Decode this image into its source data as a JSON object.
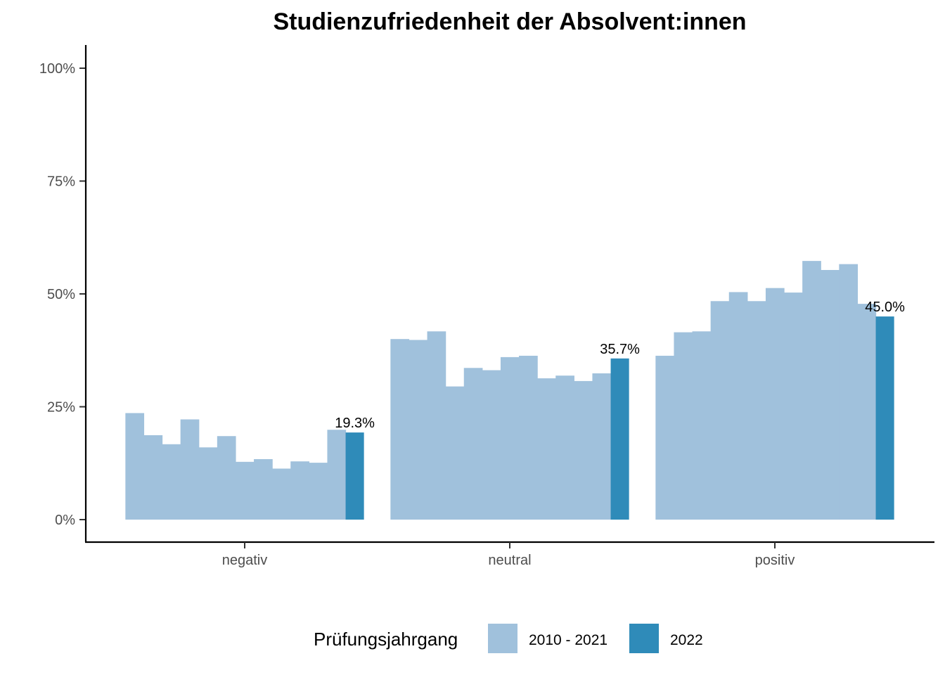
{
  "chart_data": {
    "type": "bar",
    "title": "Studienzufriedenheit der Absolvent:innen",
    "categories": [
      "negativ",
      "neutral",
      "positiv"
    ],
    "y_ticks": [
      "0%",
      "25%",
      "50%",
      "75%",
      "100%"
    ],
    "ylim": [
      0,
      100
    ],
    "grid": false,
    "legend": {
      "title": "Prüfungsjahrgang",
      "position": "bottom",
      "entries": [
        {
          "label": "2010 - 2021",
          "color": "#a0c1dc"
        },
        {
          "label": "2022",
          "color": "#2f8bb9"
        }
      ]
    },
    "series": [
      {
        "name": "2010 - 2021",
        "color": "#a0c1dc",
        "values_by_category": [
          [
            23.6,
            18.7,
            16.7,
            22.2,
            16.0,
            18.5,
            12.8,
            13.4,
            11.3,
            12.9,
            12.6,
            19.9
          ],
          [
            40.0,
            39.8,
            41.7,
            29.5,
            33.6,
            33.1,
            36.0,
            36.3,
            31.3,
            31.9,
            30.7,
            32.4
          ],
          [
            36.3,
            41.5,
            41.7,
            48.4,
            50.4,
            48.4,
            51.3,
            50.3,
            57.3,
            55.3,
            56.6,
            47.8
          ]
        ]
      },
      {
        "name": "2022",
        "color": "#2f8bb9",
        "values": [
          19.3,
          35.7,
          45.0
        ],
        "labels": [
          "19.3%",
          "35.7%",
          "45.0%"
        ]
      }
    ]
  }
}
